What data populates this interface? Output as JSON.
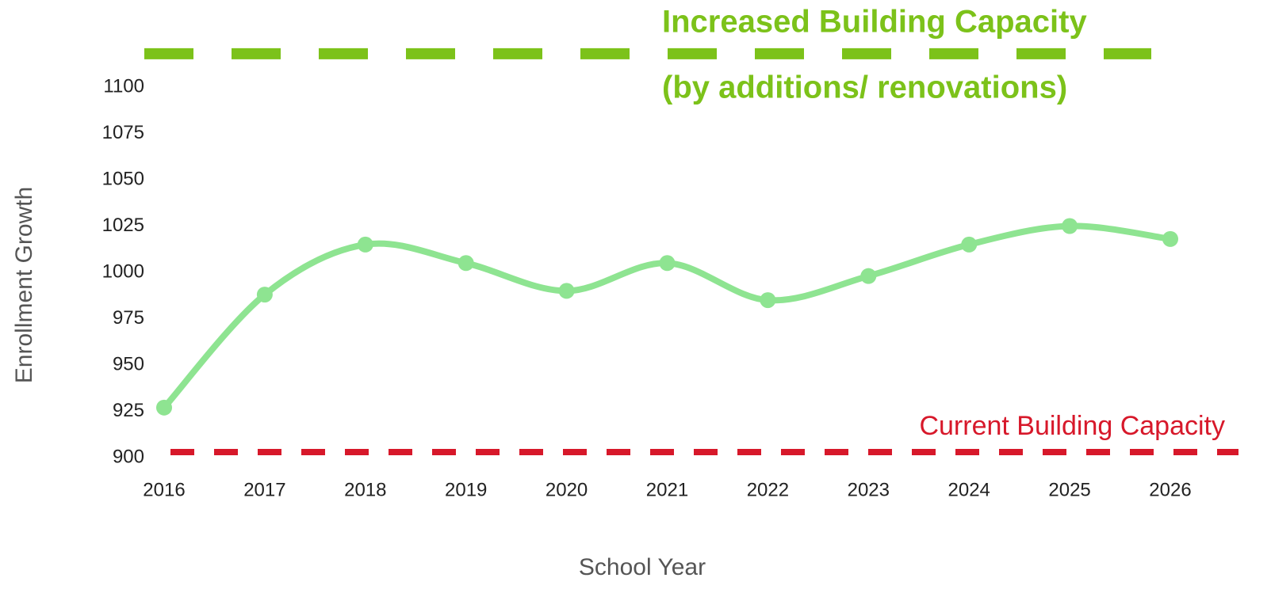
{
  "chart_data": {
    "type": "line",
    "x_label": "School Year",
    "y_label": "Enrollment Growth",
    "x": [
      2016,
      2017,
      2018,
      2019,
      2020,
      2021,
      2022,
      2023,
      2024,
      2025,
      2026
    ],
    "xlim": [
      2016,
      2026
    ],
    "xticks": [
      2016,
      2017,
      2018,
      2019,
      2020,
      2021,
      2022,
      2023,
      2024,
      2025,
      2026
    ],
    "ylim": [
      900,
      1100
    ],
    "yticks": [
      900,
      925,
      950,
      975,
      1000,
      1025,
      1050,
      1075,
      1100
    ],
    "grid": false,
    "series": [
      {
        "color": "#8ee491",
        "values": [
          927,
          988,
          1015,
          1005,
          990,
          1005,
          985,
          998,
          1015,
          1025,
          1018
        ]
      }
    ],
    "reference_lines": [
      {
        "value": 1118,
        "color": "#7cc21a",
        "label": [
          "Increased Building Capacity",
          "(by additions/ renovations)"
        ]
      },
      {
        "value": 903,
        "color": "#d7182a",
        "label": [
          "Current Building Capacity"
        ]
      }
    ]
  }
}
